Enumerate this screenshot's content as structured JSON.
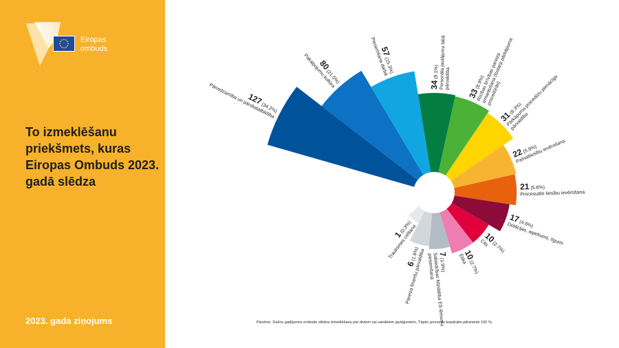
{
  "sidebar": {
    "logo_text_line1": "Eiropas",
    "logo_text_line2": "ombuds",
    "headline": "To izmeklēšanu priekšmets, kuras Eiropas Ombuds 2023. gadā slēdza",
    "report_label": "2023. gada ziņojums"
  },
  "colors": {
    "sidebar": "#f7b12a",
    "text": "#1e1e1e",
    "logo_flag": "#1f4b9c"
  },
  "note": "Piezīme. Dažos gadījumos ombude slēdza izmeklēšanu par diviem vai vairākiem jautājumiem. Tāpēc procentu kopskaits pārsniedz 100 %.",
  "chart_data": {
    "type": "pie",
    "subtype": "polar-area",
    "title": "To izmeklēšanu priekšmets, kuras Eiropas Ombuds 2023. gadā slēdza",
    "series": [
      {
        "count": 127,
        "percent": "34.2%",
        "label": "Pārredzamība un pārskatatbildība",
        "color": "#00539b"
      },
      {
        "count": 80,
        "percent": "21.5%",
        "label": "Pakalpojumu kultūra",
        "color": "#0d72c3"
      },
      {
        "count": 57,
        "percent": "15.3%",
        "label": "Pieņemšana darbā",
        "color": "#11a6e2"
      },
      {
        "count": 34,
        "percent": "9.1%",
        "label": "Personāla jautājumu labā pārvaldība",
        "color": "#047d43"
      },
      {
        "count": 33,
        "percent": "8.9%",
        "label": "Rīcības brīvības pareiza izmantošana (tostarp pārkāpuma procedūrās)",
        "color": "#4bb137"
      },
      {
        "count": 31,
        "percent": "8.3%",
        "label": "Pārkāpuma procedūru pienācīga pārvaldība",
        "color": "#ffd500"
      },
      {
        "count": 22,
        "percent": "5.9%",
        "label": "Pamattiesību ievērošana",
        "color": "#f7b431"
      },
      {
        "count": 21,
        "percent": "5.6%",
        "label": "Procesuālo tiesību ievērošana",
        "color": "#e8620e"
      },
      {
        "count": 17,
        "percent": "4.6%",
        "label": "Dotācijas, iepirkums, līgumi",
        "color": "#8c0b38"
      },
      {
        "count": 10,
        "percent": "2.7%",
        "label": "Cits",
        "color": "#e1003c"
      },
      {
        "count": 10,
        "percent": "2.7%",
        "label": "Ētika",
        "color": "#ee7db1"
      },
      {
        "count": 7,
        "percent": "1.9%",
        "label": "Sabiedrības līdzdalība ES lēmumu pieņemšanā",
        "color": "#b1bcc4"
      },
      {
        "count": 6,
        "percent": "1.6%",
        "label": "Pareiza finanšu pārvaldība",
        "color": "#d2d7dc"
      },
      {
        "count": 1,
        "percent": "0.3%",
        "label": "Trauksmes celšana",
        "color": "#e6e9ec"
      }
    ]
  }
}
